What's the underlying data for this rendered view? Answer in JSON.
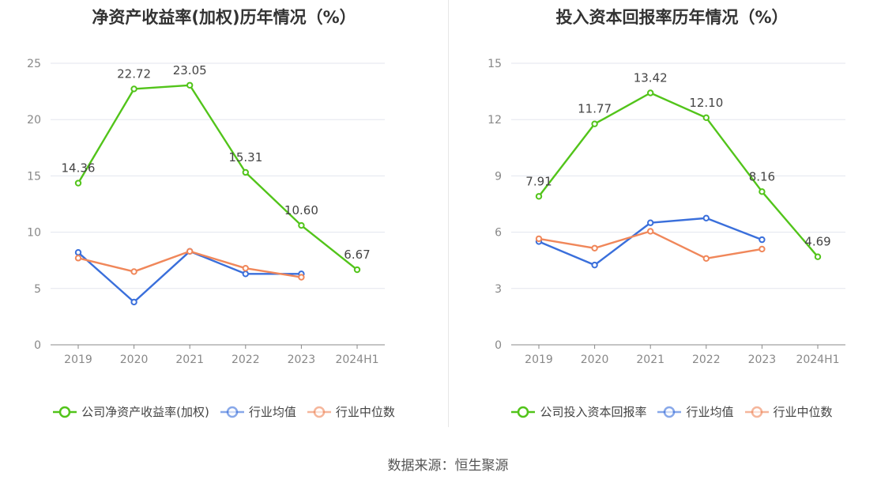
{
  "source": "数据来源：恒生聚源",
  "chart_data": [
    {
      "type": "line",
      "title": "净资产收益率(加权)历年情况（%）",
      "categories": [
        "2019",
        "2020",
        "2021",
        "2022",
        "2023",
        "2024H1"
      ],
      "ylim": [
        0,
        25
      ],
      "yticks": [
        0,
        5,
        10,
        15,
        20,
        25
      ],
      "grid": true,
      "legend_position": "bottom",
      "series": [
        {
          "name": "公司净资产收益率(加权)",
          "color": "#52c41a",
          "labels": true,
          "values": [
            14.36,
            22.72,
            23.05,
            15.31,
            10.6,
            6.67
          ],
          "label_text": [
            "14.36",
            "22.72",
            "23.05",
            "15.31",
            "10.60",
            "6.67"
          ]
        },
        {
          "name": "行业均值",
          "color": "#3a6fdb",
          "labels": false,
          "values": [
            8.2,
            3.8,
            8.3,
            6.3,
            6.3,
            null
          ]
        },
        {
          "name": "行业中位数",
          "color": "#f0875a",
          "labels": false,
          "values": [
            7.7,
            6.5,
            8.3,
            6.8,
            6.0,
            null
          ]
        }
      ]
    },
    {
      "type": "line",
      "title": "投入资本回报率历年情况（%）",
      "categories": [
        "2019",
        "2020",
        "2021",
        "2022",
        "2023",
        "2024H1"
      ],
      "ylim": [
        0,
        15
      ],
      "yticks": [
        0,
        3,
        6,
        9,
        12,
        15
      ],
      "grid": true,
      "legend_position": "bottom",
      "series": [
        {
          "name": "公司投入资本回报率",
          "color": "#52c41a",
          "labels": true,
          "values": [
            7.91,
            11.77,
            13.42,
            12.1,
            8.16,
            4.69
          ],
          "label_text": [
            "7.91",
            "11.77",
            "13.42",
            "12.10",
            "8.16",
            "4.69"
          ]
        },
        {
          "name": "行业均值",
          "color": "#3a6fdb",
          "labels": false,
          "values": [
            5.5,
            4.25,
            6.5,
            6.75,
            5.6,
            null
          ]
        },
        {
          "name": "行业中位数",
          "color": "#f0875a",
          "labels": false,
          "values": [
            5.65,
            5.15,
            6.05,
            4.6,
            5.1,
            null
          ]
        }
      ]
    }
  ]
}
